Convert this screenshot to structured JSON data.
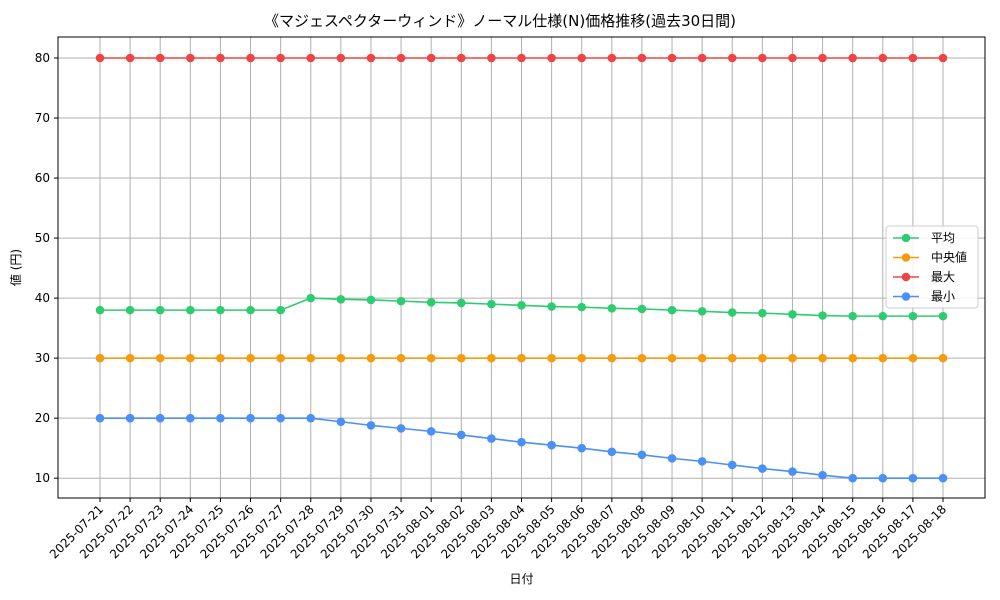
{
  "chart_data": {
    "type": "line",
    "title": "《マジェスペクターウィンド》ノーマル仕様(N)価格推移(過去30日間)",
    "xlabel": "日付",
    "ylabel": "値 (円)",
    "grid": true,
    "legend_position": "center-right",
    "ylim": [
      6.7,
      83.5
    ],
    "yticks": [
      10,
      20,
      30,
      40,
      50,
      60,
      70,
      80
    ],
    "x": [
      "2025-07-21",
      "2025-07-22",
      "2025-07-23",
      "2025-07-24",
      "2025-07-25",
      "2025-07-26",
      "2025-07-27",
      "2025-07-28",
      "2025-07-29",
      "2025-07-30",
      "2025-07-31",
      "2025-08-01",
      "2025-08-02",
      "2025-08-03",
      "2025-08-04",
      "2025-08-05",
      "2025-08-06",
      "2025-08-07",
      "2025-08-08",
      "2025-08-09",
      "2025-08-10",
      "2025-08-11",
      "2025-08-12",
      "2025-08-13",
      "2025-08-14",
      "2025-08-15",
      "2025-08-16",
      "2025-08-17",
      "2025-08-18"
    ],
    "series": [
      {
        "name": "平均",
        "color": "#2ecc71",
        "values": [
          38,
          38,
          38,
          38,
          38,
          38,
          38,
          40,
          39.8,
          39.7,
          39.5,
          39.3,
          39.2,
          39.0,
          38.8,
          38.6,
          38.5,
          38.3,
          38.2,
          38.0,
          37.8,
          37.6,
          37.5,
          37.3,
          37.1,
          37.0,
          37.0,
          37.0,
          37.0
        ]
      },
      {
        "name": "中央値",
        "color": "#f39c12",
        "values": [
          30,
          30,
          30,
          30,
          30,
          30,
          30,
          30,
          30,
          30,
          30,
          30,
          30,
          30,
          30,
          30,
          30,
          30,
          30,
          30,
          30,
          30,
          30,
          30,
          30,
          30,
          30,
          30,
          30
        ]
      },
      {
        "name": "最大",
        "color": "#ef4444",
        "values": [
          80,
          80,
          80,
          80,
          80,
          80,
          80,
          80,
          80,
          80,
          80,
          80,
          80,
          80,
          80,
          80,
          80,
          80,
          80,
          80,
          80,
          80,
          80,
          80,
          80,
          80,
          80,
          80,
          80
        ]
      },
      {
        "name": "最小",
        "color": "#4a90f5",
        "values": [
          20,
          20,
          20,
          20,
          20,
          20,
          20,
          20,
          19.4,
          18.8,
          18.3,
          17.8,
          17.2,
          16.6,
          16.0,
          15.5,
          15.0,
          14.4,
          13.9,
          13.3,
          12.8,
          12.2,
          11.6,
          11.1,
          10.5,
          10.0,
          10.0,
          10.0,
          10.0
        ]
      }
    ]
  }
}
